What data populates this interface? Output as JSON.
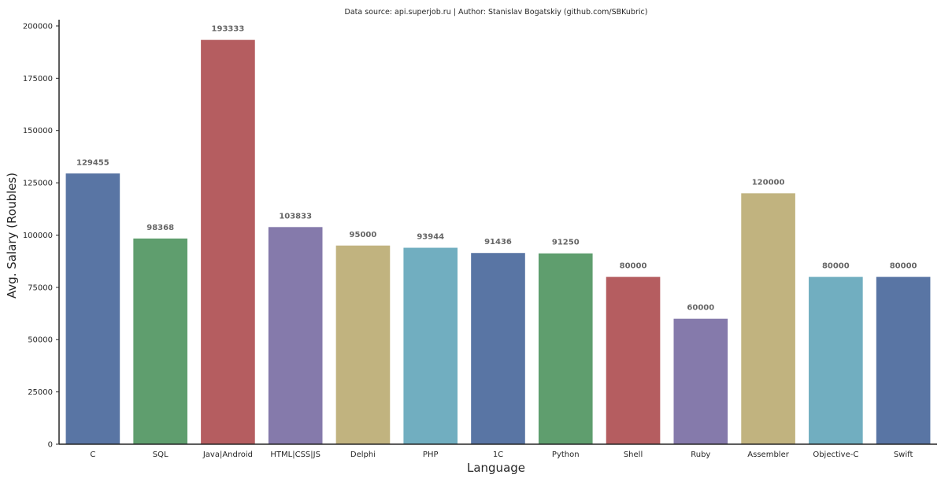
{
  "chart_data": {
    "type": "bar",
    "title": "Data source: api.superjob.ru | Author: Stanislav Bogatskiy (github.com/SBKubric)",
    "xlabel": "Language",
    "ylabel": "Avg. Salary (Roubles)",
    "ylim": [
      0,
      203000
    ],
    "yticks": [
      0,
      25000,
      50000,
      75000,
      100000,
      125000,
      150000,
      175000,
      200000
    ],
    "grid": false,
    "categories": [
      "C",
      "SQL",
      "Java|Android",
      "HTML|CSS|JS",
      "Delphi",
      "PHP",
      "1C",
      "Python",
      "Shell",
      "Ruby",
      "Assembler",
      "Objective-C",
      "Swift"
    ],
    "values": [
      129455,
      98368,
      193333,
      103833,
      95000,
      93944,
      91436,
      91250,
      80000,
      60000,
      120000,
      80000,
      80000
    ],
    "data_labels": [
      "129455",
      "98368",
      "193333",
      "103833",
      "95000",
      "93944",
      "91436",
      "91250",
      "80000",
      "60000",
      "120000",
      "80000",
      "80000"
    ],
    "colors": [
      "#5975a4",
      "#5f9e6e",
      "#b55d60",
      "#857aab",
      "#c1b37f",
      "#71aec0",
      "#5975a4",
      "#5f9e6e",
      "#b55d60",
      "#857aab",
      "#c1b37f",
      "#71aec0",
      "#5975a4"
    ]
  }
}
